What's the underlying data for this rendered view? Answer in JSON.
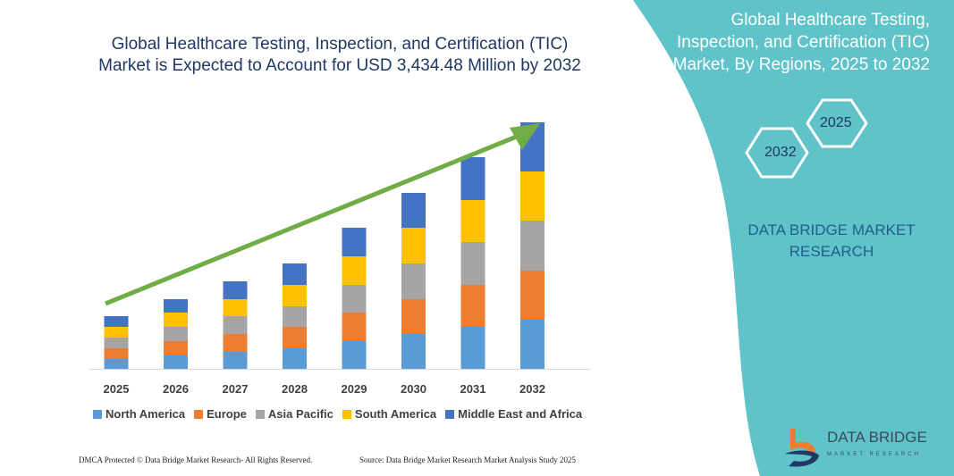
{
  "header": {
    "title_line1": "Global Healthcare Testing, Inspection, and Certification (TIC)",
    "title_line2": "Market is Expected to Account for USD 3,434.48 Million by 2032"
  },
  "side": {
    "title_line1": "Global Healthcare Testing,",
    "title_line2": "Inspection, and Certification (TIC)",
    "title_line3": "Market, By Regions, 2025 to 2032",
    "hex_top": "2025",
    "hex_bottom": "2032",
    "brand_line1": "DATA BRIDGE MARKET",
    "brand_line2": "RESEARCH",
    "logo_text": "DATA BRIDGE",
    "logo_sub": "MARKET RESEARCH"
  },
  "footer": {
    "left": "DMCA Protected © Data Bridge Market Research- All Rights Reserved.",
    "right": "Source: Data Bridge Market Research Market Analysis Study 2025"
  },
  "colors": {
    "panel": "#5fc3c9",
    "arrow": "#70ad47",
    "title": "#1f3864"
  },
  "chart_data": {
    "type": "bar",
    "stacked": true,
    "title": "",
    "xlabel": "",
    "ylabel": "",
    "trend_arrow": true,
    "categories": [
      "2025",
      "2026",
      "2027",
      "2028",
      "2029",
      "2030",
      "2031",
      "2032"
    ],
    "legend_position": "bottom",
    "series": [
      {
        "name": "North America",
        "color": "#5b9bd5",
        "values": [
          11,
          15,
          19,
          23,
          31,
          39,
          47,
          55
        ]
      },
      {
        "name": "Europe",
        "color": "#ed7d31",
        "values": [
          12,
          16,
          20,
          24,
          32,
          39,
          47,
          55
        ]
      },
      {
        "name": "Asia Pacific",
        "color": "#a5a5a5",
        "values": [
          12,
          16,
          20,
          23,
          31,
          40,
          48,
          56
        ]
      },
      {
        "name": "South America",
        "color": "#ffc000",
        "values": [
          12,
          16,
          19,
          24,
          32,
          40,
          47,
          55
        ]
      },
      {
        "name": "Middle East and Africa",
        "color": "#4472c4",
        "values": [
          12,
          15,
          20,
          24,
          32,
          39,
          48,
          55
        ]
      }
    ]
  }
}
